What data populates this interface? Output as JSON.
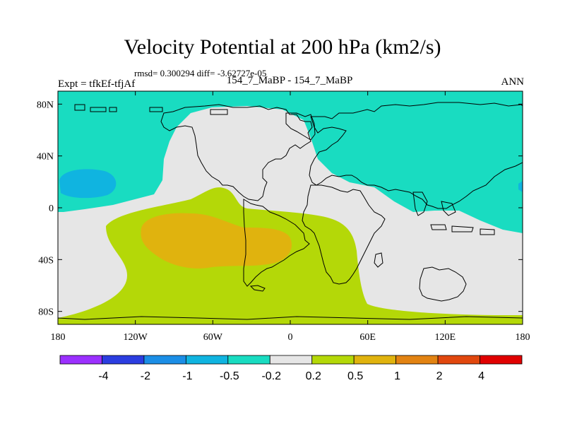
{
  "title": "Velocity Potential at 200 hPa (km2/s)",
  "stats": "rmsd= 0.300294 diff= -3.62727e-05",
  "left_label": "Expt = tfkEf-tfjAf",
  "center_label": "154_7_MaBP - 154_7_MaBP",
  "right_label": "ANN",
  "map": {
    "lon_range": [
      -180,
      180
    ],
    "lat_range": [
      -90,
      90
    ],
    "lat_ticks": [
      {
        "value": 80,
        "label": "80N"
      },
      {
        "value": 40,
        "label": "40N"
      },
      {
        "value": 0,
        "label": "0"
      },
      {
        "value": -40,
        "label": "40S"
      },
      {
        "value": -80,
        "label": "80S"
      }
    ],
    "lon_ticks": [
      {
        "value": -180,
        "label": "180"
      },
      {
        "value": -120,
        "label": "120W"
      },
      {
        "value": -60,
        "label": "60W"
      },
      {
        "value": 0,
        "label": "0"
      },
      {
        "value": 60,
        "label": "60E"
      },
      {
        "value": 120,
        "label": "120E"
      },
      {
        "value": 180,
        "label": "180"
      }
    ],
    "background_color": "#e6e6e6",
    "coastline_color": "#000000"
  },
  "colorbar": {
    "colors": [
      "#9b30ff",
      "#2b3de0",
      "#1b8ee6",
      "#10b4e0",
      "#19dcc1",
      "#e6e6e6",
      "#b4d808",
      "#e0b30e",
      "#e28312",
      "#e1470e",
      "#e00000"
    ],
    "labels": [
      "-4",
      "-2",
      "-1",
      "-0.5",
      "-0.2",
      "0.2",
      "0.5",
      "1",
      "2",
      "4"
    ]
  }
}
